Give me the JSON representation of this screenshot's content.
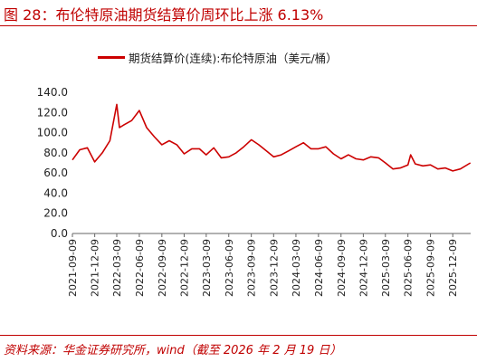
{
  "figure": {
    "title": "图 28：布伦特原油期货结算价周环比上涨 6.13%",
    "source": "资料来源：华金证券研究所，wind（截至 2026 年 2 月 19 日）"
  },
  "chart_data": {
    "type": "line",
    "title": "",
    "xlabel": "",
    "ylabel": "",
    "ylim": [
      0,
      140
    ],
    "yticks": [
      "0.0",
      "20.0",
      "40.0",
      "60.0",
      "80.0",
      "100.0",
      "120.0",
      "140.0"
    ],
    "xticks": [
      "2021-09-09",
      "2021-12-09",
      "2022-03-09",
      "2022-06-09",
      "2022-09-09",
      "2022-12-09",
      "2023-03-09",
      "2023-06-09",
      "2023-09-09",
      "2023-12-09",
      "2024-03-09",
      "2024-06-09",
      "2024-09-09",
      "2024-12-09",
      "2025-03-09",
      "2025-06-09",
      "2025-09-09",
      "2025-12-09"
    ],
    "grid": false,
    "legend_position": "top",
    "series": [
      {
        "name": "期货结算价(连续):布伦特原油（美元/桶）",
        "color": "#cc0000",
        "x": [
          "2021-09-09",
          "2021-10-09",
          "2021-11-09",
          "2021-12-09",
          "2022-01-09",
          "2022-02-09",
          "2022-03-09",
          "2022-03-20",
          "2022-04-09",
          "2022-05-09",
          "2022-06-09",
          "2022-07-09",
          "2022-08-09",
          "2022-09-09",
          "2022-10-09",
          "2022-11-09",
          "2022-12-09",
          "2023-01-09",
          "2023-02-09",
          "2023-03-09",
          "2023-04-09",
          "2023-05-09",
          "2023-06-09",
          "2023-07-09",
          "2023-08-09",
          "2023-09-09",
          "2023-10-09",
          "2023-11-09",
          "2023-12-09",
          "2024-01-09",
          "2024-02-09",
          "2024-03-09",
          "2024-04-09",
          "2024-05-09",
          "2024-06-09",
          "2024-07-09",
          "2024-08-09",
          "2024-09-09",
          "2024-10-09",
          "2024-11-09",
          "2024-12-09",
          "2025-01-09",
          "2025-02-09",
          "2025-03-09",
          "2025-04-09",
          "2025-05-09",
          "2025-06-09",
          "2025-06-20",
          "2025-07-09",
          "2025-08-09",
          "2025-09-09",
          "2025-10-09",
          "2025-11-09",
          "2025-12-09",
          "2026-01-09",
          "2026-02-19"
        ],
        "y": [
          73,
          83,
          85,
          71,
          80,
          92,
          128,
          105,
          108,
          112,
          122,
          105,
          96,
          88,
          92,
          88,
          79,
          84,
          84,
          78,
          85,
          75,
          76,
          80,
          86,
          93,
          88,
          82,
          76,
          78,
          82,
          86,
          90,
          84,
          84,
          86,
          79,
          74,
          78,
          74,
          73,
          76,
          75,
          70,
          64,
          65,
          68,
          78,
          69,
          67,
          68,
          64,
          65,
          62,
          64,
          70
        ]
      }
    ]
  }
}
